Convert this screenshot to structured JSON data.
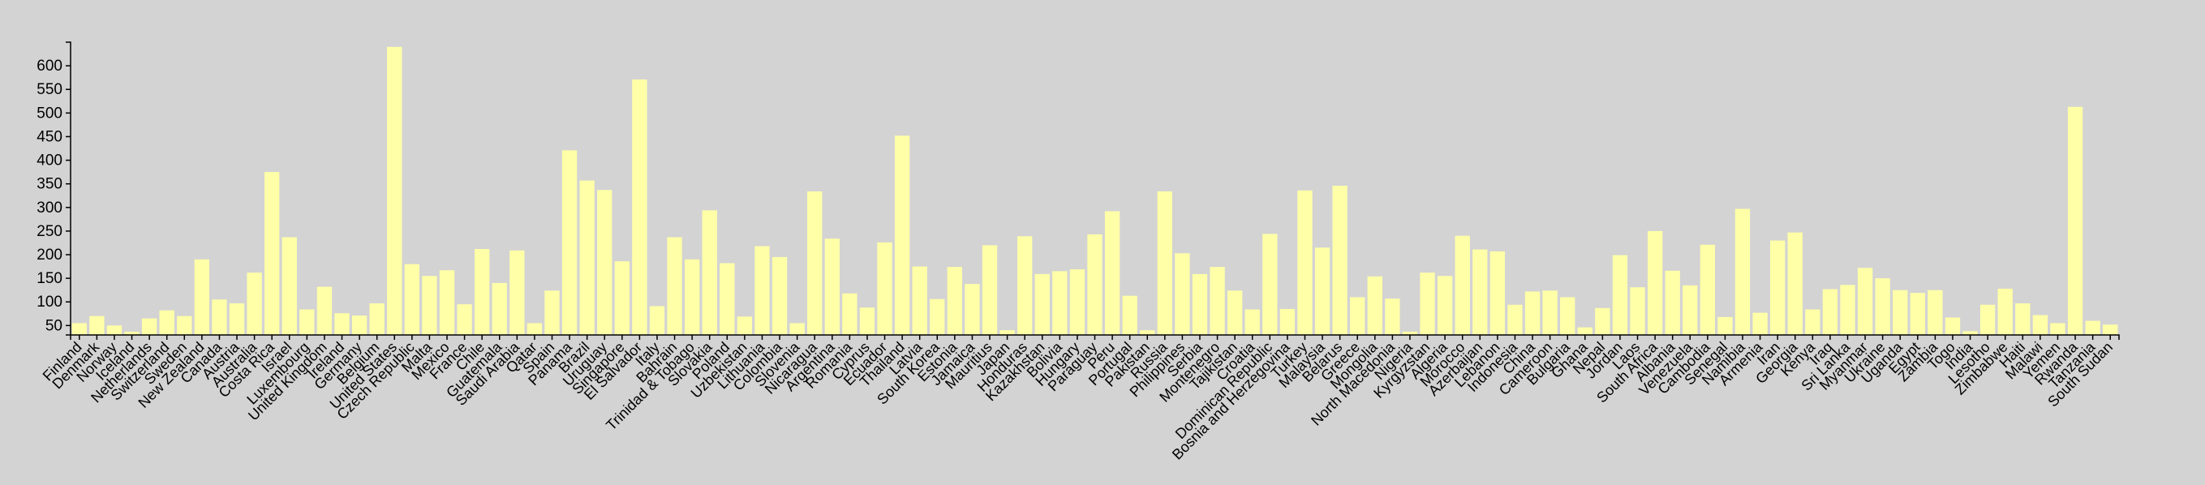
{
  "chart_data": {
    "type": "bar",
    "title": "",
    "xlabel": "",
    "ylabel": "",
    "ylim": [
      30,
      650
    ],
    "yticks": [
      50,
      100,
      150,
      200,
      250,
      300,
      350,
      400,
      450,
      500,
      550,
      600
    ],
    "colors": {
      "bar": "#ffffa8",
      "background": "#d3d3d3",
      "axis": "#000000"
    },
    "categories": [
      "Finland",
      "Denmark",
      "Norway",
      "Iceland",
      "Netherlands",
      "Switzerland",
      "Sweden",
      "New Zealand",
      "Canada",
      "Austria",
      "Australia",
      "Costa Rica",
      "Israel",
      "Luxembourg",
      "United Kingdom",
      "Ireland",
      "Germany",
      "Belgium",
      "United States",
      "Czech Republic",
      "Malta",
      "Mexico",
      "France",
      "Chile",
      "Guatemala",
      "Saudi Arabia",
      "Qatar",
      "Spain",
      "Panama",
      "Brazil",
      "Uruguay",
      "Singapore",
      "El Salvador",
      "Italy",
      "Bahrain",
      "Trinidad & Tobago",
      "Slovakia",
      "Poland",
      "Uzbekistan",
      "Lithuania",
      "Colombia",
      "Slovenia",
      "Nicaragua",
      "Argentina",
      "Romania",
      "Cyprus",
      "Ecuador",
      "Thailand",
      "Latvia",
      "South Korea",
      "Estonia",
      "Jamaica",
      "Mauritius",
      "Japan",
      "Honduras",
      "Kazakhstan",
      "Bolivia",
      "Hungary",
      "Paraguay",
      "Peru",
      "Portugal",
      "Pakistan",
      "Russia",
      "Philippines",
      "Serbia",
      "Montenegro",
      "Tajikistan",
      "Croatia",
      "Dominican Republic",
      "Bosnia and Herzegovina",
      "Turkey",
      "Malaysia",
      "Belarus",
      "Greece",
      "Mongolia",
      "North Macedonia",
      "Nigeria",
      "Kyrgyzstan",
      "Algeria",
      "Morocco",
      "Azerbaijan",
      "Lebanon",
      "Indonesia",
      "China",
      "Cameroon",
      "Bulgaria",
      "Ghana",
      "Nepal",
      "Jordan",
      "Laos",
      "South Africa",
      "Albania",
      "Venezuela",
      "Cambodia",
      "Senegal",
      "Namibia",
      "Armenia",
      "Iran",
      "Georgia",
      "Kenya",
      "Iraq",
      "Sri Lanka",
      "Myanmar",
      "Ukraine",
      "Uganda",
      "Egypt",
      "Zambia",
      "Togo",
      "India",
      "Lesotho",
      "Zimbabwe",
      "Haiti",
      "Malawi",
      "Yemen",
      "Rwanda",
      "Tanzania",
      "South Sudan"
    ],
    "values": [
      55,
      70,
      50,
      37,
      65,
      82,
      70,
      190,
      105,
      97,
      162,
      375,
      237,
      84,
      132,
      76,
      71,
      97,
      640,
      180,
      155,
      167,
      95,
      212,
      140,
      209,
      55,
      124,
      421,
      357,
      337,
      186,
      571,
      91,
      237,
      190,
      294,
      182,
      69,
      218,
      195,
      55,
      334,
      234,
      118,
      88,
      226,
      452,
      175,
      106,
      174,
      138,
      220,
      40,
      239,
      159,
      165,
      169,
      243,
      292,
      113,
      40,
      334,
      203,
      159,
      174,
      124,
      84,
      244,
      85,
      336,
      215,
      346,
      110,
      154,
      107,
      37,
      162,
      155,
      240,
      211,
      207,
      94,
      122,
      124,
      110,
      46,
      87,
      199,
      131,
      250,
      166,
      135,
      221,
      68,
      297,
      77,
      230,
      247,
      84,
      127,
      136,
      172,
      150,
      125,
      119,
      125,
      67,
      38,
      94,
      128,
      97,
      72,
      55,
      513,
      60,
      52
    ]
  }
}
